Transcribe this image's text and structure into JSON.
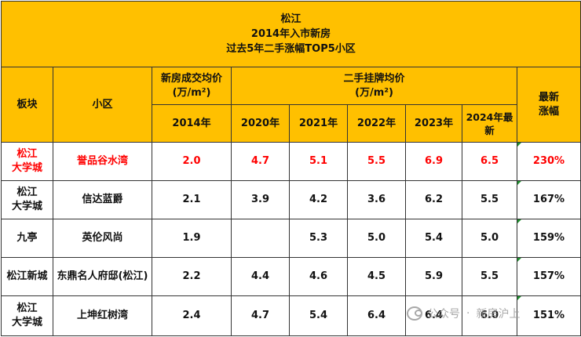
{
  "title": [
    "松江",
    "2014年入市新房",
    "过去5年二手涨幅TOP5小区"
  ],
  "headers": {
    "bankuai": "板块",
    "xiaoqu": "小区",
    "new_price": [
      "新房成交均价",
      "(万/m²)"
    ],
    "second_price": [
      "二手挂牌均价",
      "(万/m²)"
    ],
    "latest": [
      "最新",
      "涨幅"
    ],
    "years": [
      "2014年",
      "2020年",
      "2021年",
      "2022年",
      "2023年",
      "2024年最新"
    ]
  },
  "rows": [
    {
      "bankuai": [
        "松江",
        "大学城"
      ],
      "xiaoqu": "誉品谷水湾",
      "new": "2.0",
      "y2020": "4.7",
      "y2021": "5.1",
      "y2022": "5.5",
      "y2023": "6.9",
      "y2024": "6.5",
      "rise": "230%",
      "highlight": true
    },
    {
      "bankuai": [
        "松江",
        "大学城"
      ],
      "xiaoqu": "信达蓝爵",
      "new": "2.1",
      "y2020": "3.9",
      "y2021": "4.2",
      "y2022": "3.6",
      "y2023": "6.2",
      "y2024": "5.5",
      "rise": "167%",
      "highlight": false
    },
    {
      "bankuai": [
        "九亭"
      ],
      "xiaoqu": "英伦风尚",
      "new": "1.9",
      "y2020": "",
      "y2021": "5.3",
      "y2022": "5.0",
      "y2023": "5.4",
      "y2024": "5.0",
      "rise": "159%",
      "highlight": false
    },
    {
      "bankuai": [
        "松江新城"
      ],
      "xiaoqu": "东鼎名人府邸(松江)",
      "new": "2.2",
      "y2020": "4.4",
      "y2021": "4.6",
      "y2022": "4.5",
      "y2023": "5.9",
      "y2024": "5.5",
      "rise": "157%",
      "highlight": false
    },
    {
      "bankuai": [
        "松江",
        "大学城"
      ],
      "xiaoqu": "上坤红树湾",
      "new": "2.4",
      "y2020": "4.7",
      "y2021": "5.4",
      "y2022": "6.4",
      "y2023": "6.4",
      "y2024": "6.0",
      "rise": "151%",
      "highlight": false
    }
  ],
  "watermark": {
    "icon": "wechat-icon",
    "part1": "公众号",
    "sep": "·",
    "part2": "新房沪上"
  },
  "colors": {
    "header_bg": "#ffc000",
    "highlight_text": "#ff0000"
  }
}
